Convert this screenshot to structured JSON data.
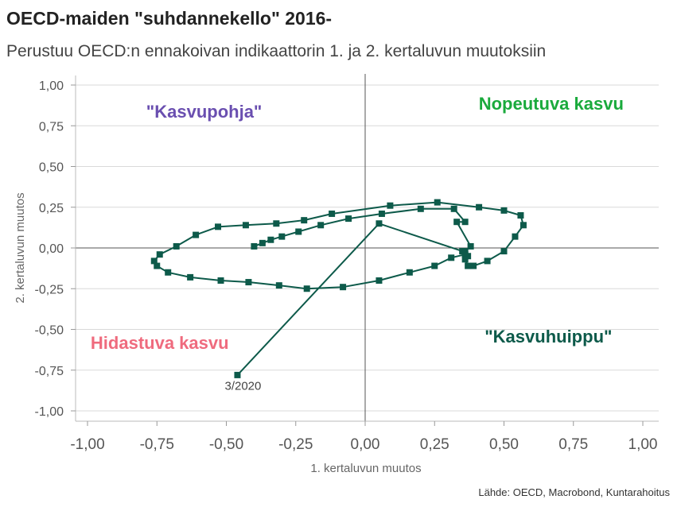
{
  "header": {
    "title": "OECD-maiden \"suhdannekello\" 2016-",
    "subtitle": "Perustuu OECD:n ennakoivan indikaattorin 1. ja 2. kertaluvun muutoksiin"
  },
  "source": "Lähde: OECD, Macrobond, Kuntarahoitus",
  "colors": {
    "series": "#0d5a4a",
    "kasvupohja": "#6a4fb0",
    "nopeutuva": "#1aaa3c",
    "hidastuva": "#ef6b7e",
    "kasvuhuippu": "#0d5a4a",
    "grid": "#d9d9d9",
    "zero": "#555555"
  },
  "chart_data": {
    "type": "scatter",
    "xlabel": "1. kertaluvun muutos",
    "ylabel": "2. kertaluvun muutos",
    "xlim": [
      -1,
      1
    ],
    "ylim": [
      -1,
      1
    ],
    "xticks": [
      -1,
      -0.75,
      -0.5,
      -0.25,
      0,
      0.25,
      0.5,
      0.75,
      1
    ],
    "yticks": [
      -1,
      -0.75,
      -0.5,
      -0.25,
      0,
      0.25,
      0.5,
      0.75,
      1
    ],
    "xtick_labels": [
      "-1,00",
      "-0,75",
      "-0,50",
      "-0,25",
      "0,00",
      "0,25",
      "0,50",
      "0,75",
      "1,00"
    ],
    "ytick_labels": [
      "-1,00",
      "-0,75",
      "-0,50",
      "-0,25",
      "0,00",
      "0,25",
      "0,50",
      "0,75",
      "1,00"
    ],
    "grid": "horizontal",
    "series": [
      {
        "x": [
          -0.4,
          -0.37,
          -0.34,
          -0.3,
          -0.24,
          -0.16,
          -0.06,
          0.06,
          0.2,
          0.32,
          0.36,
          0.33,
          0.38,
          0.36,
          0.37,
          0.36,
          0.31,
          0.25,
          0.16,
          0.05,
          -0.08,
          -0.21,
          -0.31,
          -0.42,
          -0.52,
          -0.63,
          -0.71,
          -0.75,
          -0.76,
          -0.74,
          -0.68,
          -0.61,
          -0.53,
          -0.43,
          -0.32,
          -0.22,
          -0.12,
          0.09,
          0.26,
          0.41,
          0.5,
          0.56,
          0.57,
          0.54,
          0.5,
          0.44,
          0.39,
          0.37,
          0.36,
          0.35,
          0.05,
          -0.46
        ],
        "y": [
          0.01,
          0.03,
          0.05,
          0.07,
          0.1,
          0.14,
          0.18,
          0.21,
          0.24,
          0.24,
          0.16,
          0.16,
          0.01,
          -0.02,
          -0.05,
          -0.04,
          -0.06,
          -0.11,
          -0.15,
          -0.2,
          -0.24,
          -0.25,
          -0.23,
          -0.21,
          -0.2,
          -0.18,
          -0.15,
          -0.11,
          -0.08,
          -0.04,
          0.01,
          0.08,
          0.13,
          0.14,
          0.15,
          0.17,
          0.21,
          0.26,
          0.28,
          0.25,
          0.23,
          0.2,
          0.14,
          0.07,
          -0.02,
          -0.08,
          -0.11,
          -0.11,
          -0.07,
          -0.02,
          0.15,
          -0.78
        ]
      }
    ],
    "annotations": [
      {
        "text": "\"Kasvupohja\"",
        "x": -0.58,
        "y": 0.8,
        "color": "kasvupohja"
      },
      {
        "text": "Nopeutuva kasvu",
        "x": 0.67,
        "y": 0.85,
        "color": "nopeutuva"
      },
      {
        "text": "Hidastuva kasvu",
        "x": -0.74,
        "y": -0.62,
        "color": "hidastuva"
      },
      {
        "text": "\"Kasvuhuippu\"",
        "x": 0.66,
        "y": -0.58,
        "color": "kasvuhuippu"
      },
      {
        "text": "3/2020",
        "x": -0.44,
        "y": -0.87,
        "color": "label"
      }
    ]
  }
}
